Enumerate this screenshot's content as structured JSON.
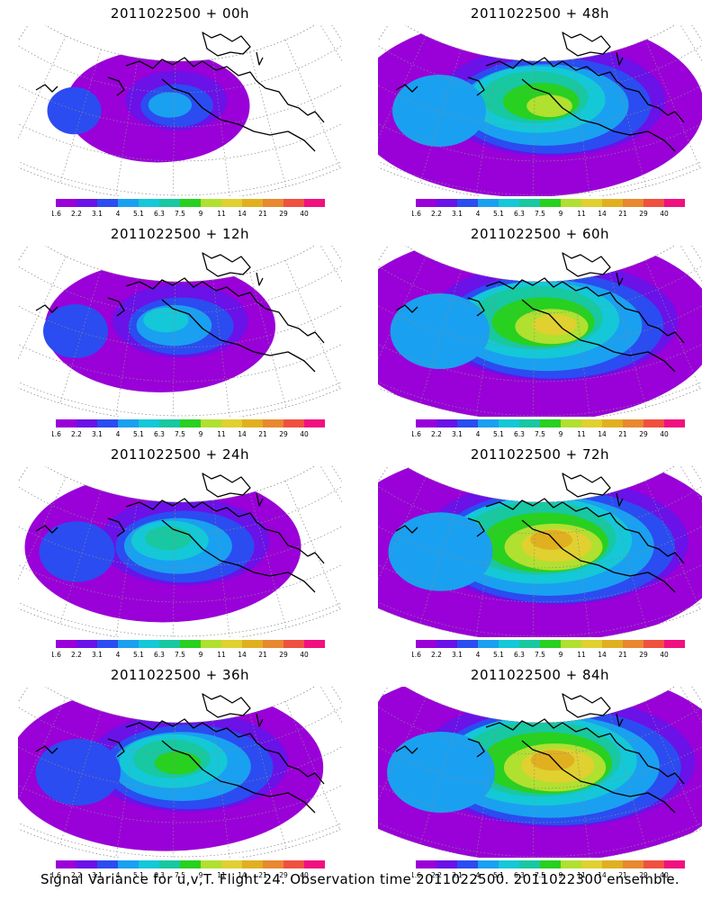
{
  "panels": [
    {
      "id": "p00",
      "title": "2011022500 + 00h",
      "spread": 0.25
    },
    {
      "id": "p48",
      "title": "2011022500 + 48h",
      "spread": 0.8
    },
    {
      "id": "p12",
      "title": "2011022500 + 12h",
      "spread": 0.4
    },
    {
      "id": "p60",
      "title": "2011022500 + 60h",
      "spread": 0.88
    },
    {
      "id": "p24",
      "title": "2011022500 + 24h",
      "spread": 0.55
    },
    {
      "id": "p72",
      "title": "2011022500 + 72h",
      "spread": 0.95
    },
    {
      "id": "p36",
      "title": "2011022500 + 36h",
      "spread": 0.68
    },
    {
      "id": "p84",
      "title": "2011022500 + 84h",
      "spread": 1.0
    }
  ],
  "colorbar": {
    "labels": [
      "1.6",
      "2.2",
      "3.1",
      "4",
      "5.1",
      "6.3",
      "7.5",
      "9",
      "11",
      "14",
      "21",
      "29",
      "40"
    ],
    "colors": [
      "#9a00d8",
      "#6a12e8",
      "#2b4cf0",
      "#1aa0f0",
      "#14c8d8",
      "#18c8a0",
      "#28d020",
      "#b0e030",
      "#e0d030",
      "#e0b020",
      "#e88830",
      "#f05040",
      "#f01080"
    ]
  },
  "footer": "Signal Variance for u,v,T. Flight 24. Observation time 2011022500. 2011022300 ensemble."
}
